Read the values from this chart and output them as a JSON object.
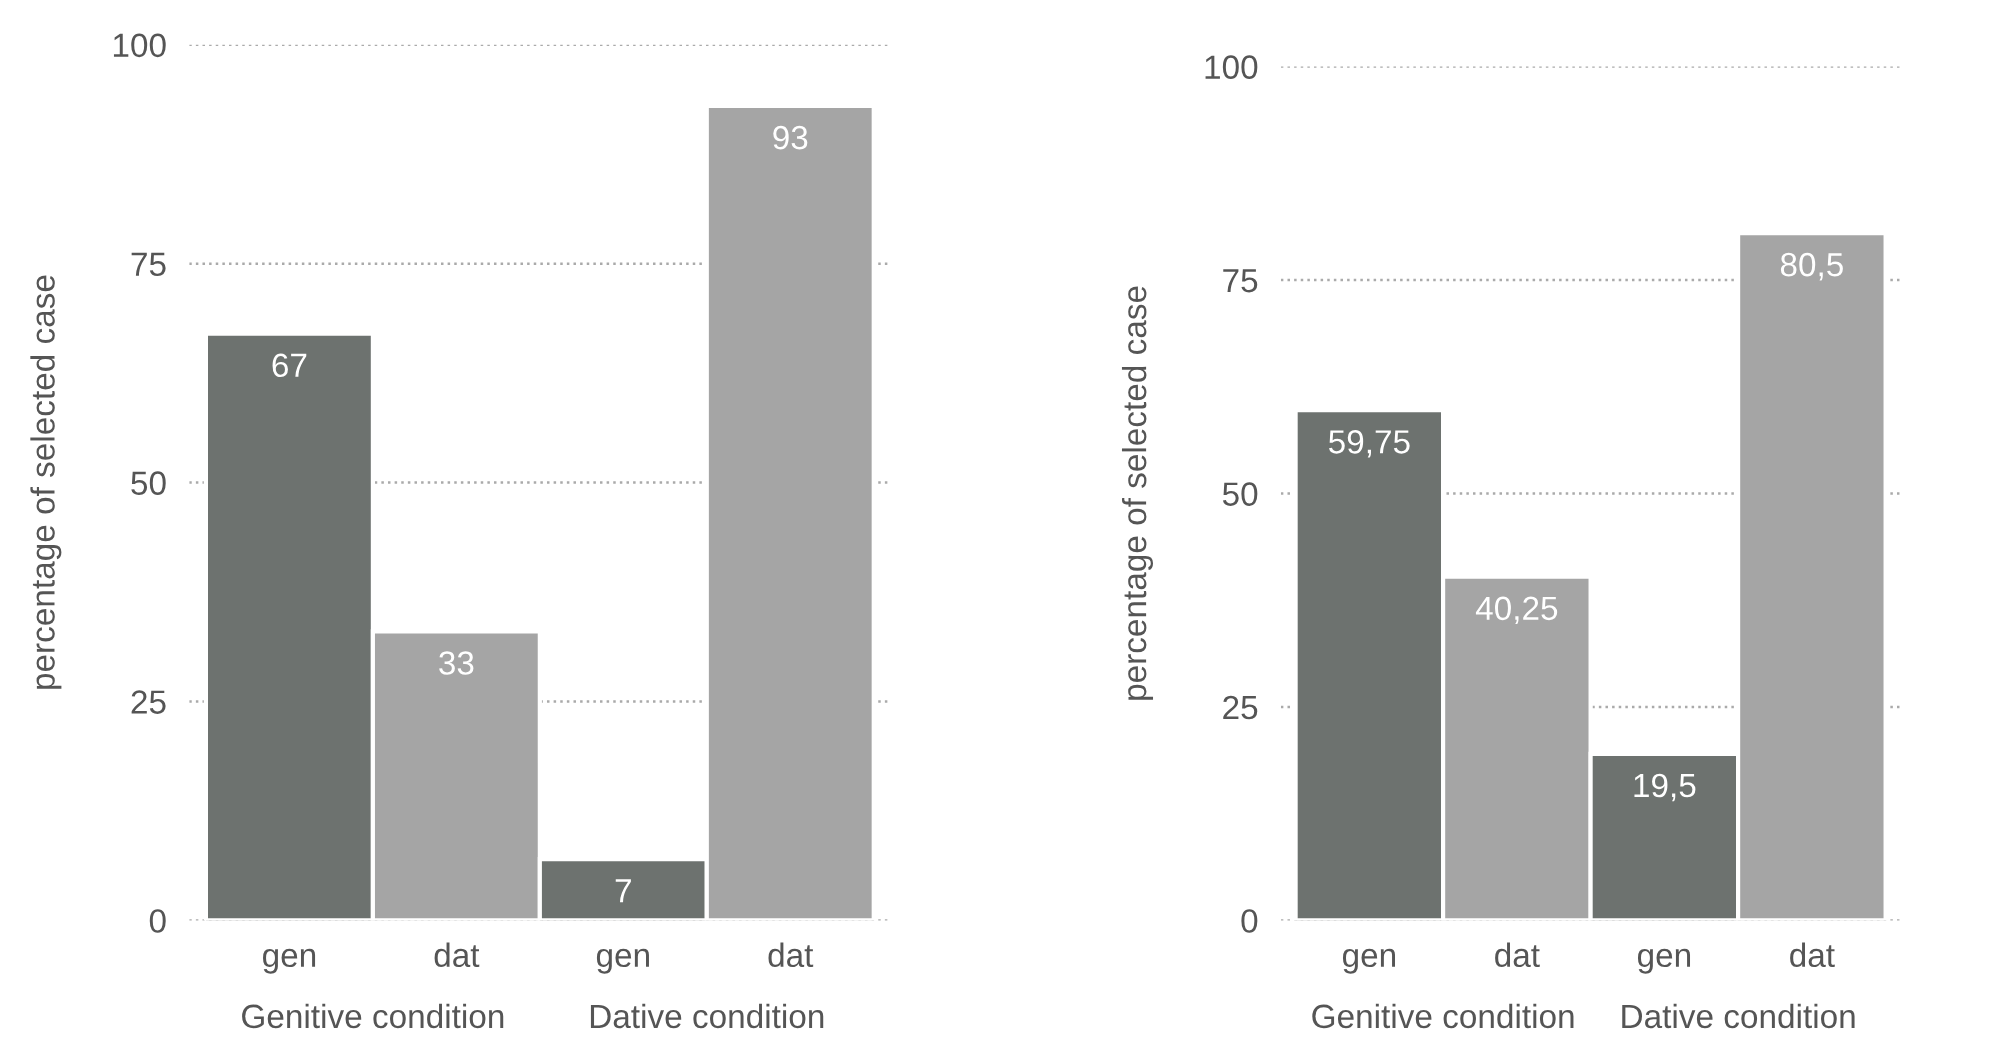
{
  "chart_data": [
    {
      "type": "bar",
      "ylabel": "percentage of selected case",
      "categories": [
        "gen",
        "dat",
        "gen",
        "dat"
      ],
      "values": [
        67,
        33,
        7,
        93
      ],
      "colors": [
        "#6d726f",
        "#a5a5a5",
        "#6d726f",
        "#a5a5a5"
      ],
      "value_labels": [
        "67",
        "33",
        "7",
        "93"
      ],
      "ylim": [
        0,
        100
      ],
      "yticks": [
        0,
        25,
        50,
        75,
        100
      ],
      "grid": "y",
      "legend": false,
      "annotations": [
        "Genitive condition",
        "Dative condition"
      ]
    },
    {
      "type": "bar",
      "ylabel": "percentage of selected case",
      "categories": [
        "gen",
        "dat",
        "gen",
        "dat"
      ],
      "values": [
        59.75,
        40.25,
        19.5,
        80.5
      ],
      "colors": [
        "#6d726f",
        "#a5a5a5",
        "#6d726f",
        "#a5a5a5"
      ],
      "value_labels": [
        "59,75",
        "40,25",
        "19,5",
        "80,5"
      ],
      "ylim": [
        0,
        100
      ],
      "yticks": [
        0,
        25,
        50,
        75,
        100
      ],
      "grid": "y",
      "legend": false,
      "annotations": [
        "Genitive condition",
        "Dative condition"
      ]
    }
  ]
}
